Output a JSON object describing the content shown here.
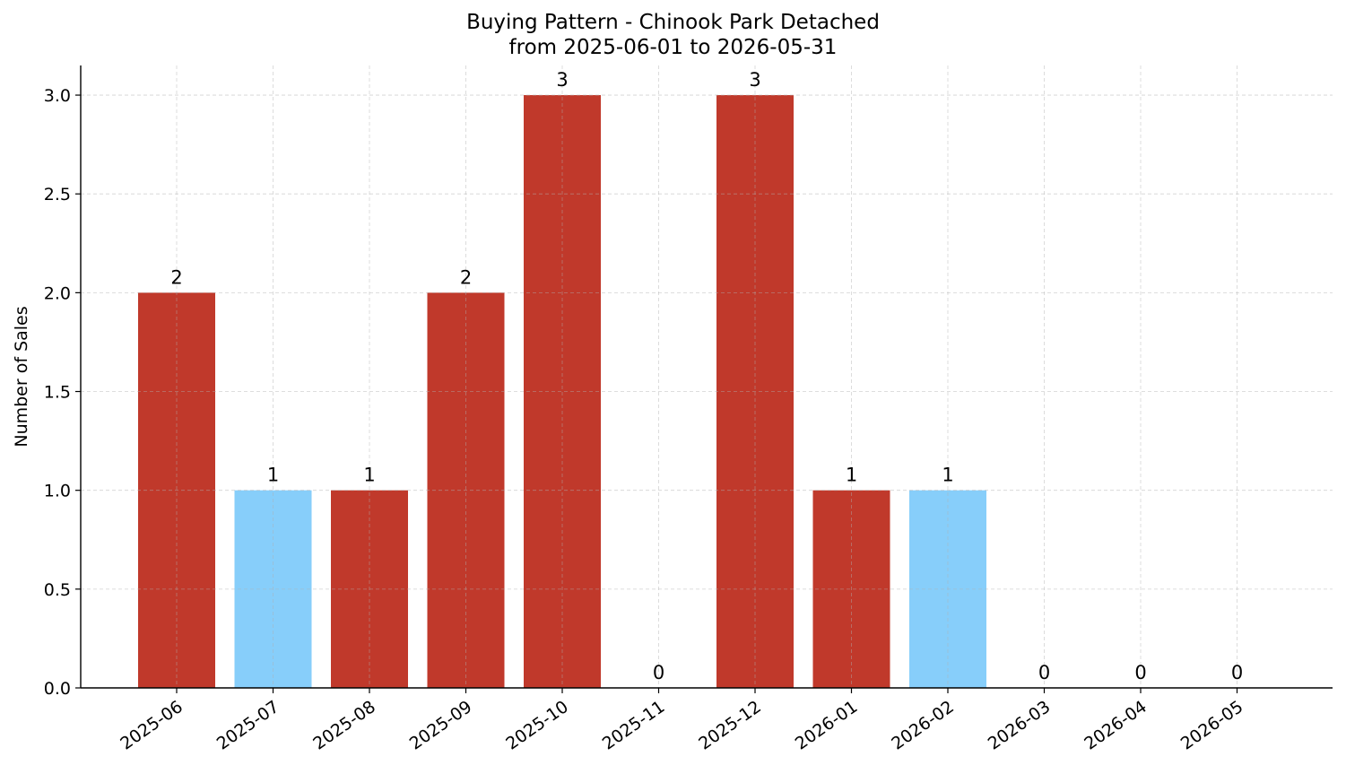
{
  "chart_data": {
    "type": "bar",
    "title": "Buying Pattern - Chinook Park Detached",
    "subtitle": "from 2025-06-01 to 2026-05-31",
    "xlabel": "",
    "ylabel": "Number of Sales",
    "ylim": [
      0,
      3.15
    ],
    "yticks": [
      0.0,
      0.5,
      1.0,
      1.5,
      2.0,
      2.5,
      3.0
    ],
    "ytick_labels": [
      "0.0",
      "0.5",
      "1.0",
      "1.5",
      "2.0",
      "2.5",
      "3.0"
    ],
    "categories": [
      "2025-06",
      "2025-07",
      "2025-08",
      "2025-09",
      "2025-10",
      "2025-11",
      "2025-12",
      "2026-01",
      "2026-02",
      "2026-03",
      "2026-04",
      "2026-05"
    ],
    "values": [
      2,
      1,
      1,
      2,
      3,
      0,
      3,
      1,
      1,
      0,
      0,
      0
    ],
    "bar_colors": [
      "#c0392b",
      "#87cefa",
      "#c0392b",
      "#c0392b",
      "#c0392b",
      "#c0392b",
      "#c0392b",
      "#c0392b",
      "#87cefa",
      "#c0392b",
      "#c0392b",
      "#c0392b"
    ],
    "data_labels": [
      "2",
      "1",
      "1",
      "2",
      "3",
      "0",
      "3",
      "1",
      "1",
      "0",
      "0",
      "0"
    ],
    "grid": true,
    "grid_style": "dashed",
    "xtick_rotation": -35
  }
}
